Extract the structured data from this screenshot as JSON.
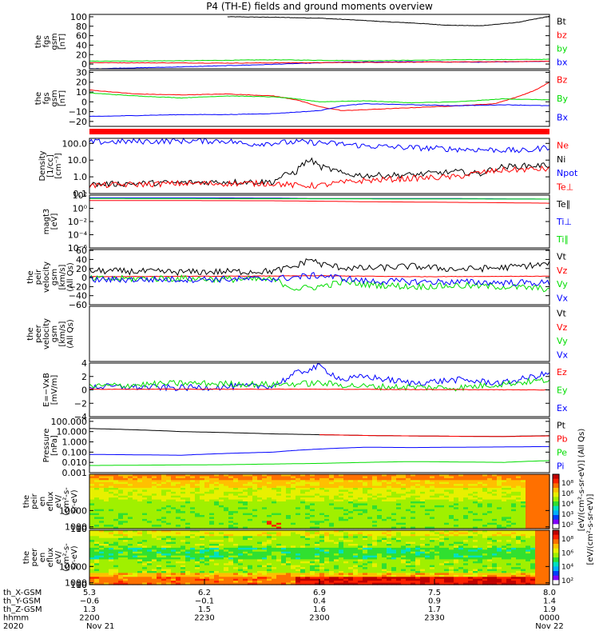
{
  "title": "P4 (TH-E) fields and ground moments overview",
  "colors": {
    "black": "#000000",
    "red": "#ff0000",
    "green": "#00dd00",
    "blue": "#0000ff"
  },
  "chart_data": [
    {
      "id": "fgs_gsm_mag",
      "type": "line",
      "ylabel": [
        "the",
        "fgs",
        "gsm",
        "[nT]"
      ],
      "ylim": [
        -10,
        105
      ],
      "yticks": [
        "100",
        "80",
        "60",
        "40",
        "20",
        "0"
      ],
      "ytick_values": [
        100,
        80,
        60,
        40,
        20,
        0
      ],
      "legend": [
        {
          "label": "Bt",
          "color": "black"
        },
        {
          "label": "bz",
          "color": "red"
        },
        {
          "label": "by",
          "color": "green"
        },
        {
          "label": "bx",
          "color": "blue"
        }
      ],
      "series": [
        {
          "name": "Bt",
          "color": "black",
          "x": [
            0.3,
            0.4,
            0.5,
            0.6,
            0.65,
            0.7,
            0.78,
            0.85,
            0.93,
            1.0
          ],
          "y": [
            100,
            99,
            97,
            92,
            89,
            87,
            82,
            81,
            88,
            101
          ]
        },
        {
          "name": "by",
          "color": "green",
          "x": [
            0.0,
            0.2,
            0.4,
            0.5,
            0.6,
            0.8,
            1.0
          ],
          "y": [
            6,
            7,
            9,
            8,
            7,
            9,
            10
          ]
        },
        {
          "name": "bx",
          "color": "blue",
          "x": [
            0.0,
            0.2,
            0.35,
            0.45,
            0.55,
            0.7,
            0.85,
            1.0
          ],
          "y": [
            -10,
            -6,
            -2,
            1,
            4,
            5,
            4,
            6
          ]
        },
        {
          "name": "bz",
          "color": "red",
          "x": [
            0.0,
            0.3,
            0.5,
            0.7,
            0.9,
            1.0
          ],
          "y": [
            3,
            2,
            3,
            4,
            5,
            6
          ]
        }
      ]
    },
    {
      "id": "fgs_gsm_comp",
      "type": "line",
      "ylabel": [
        "the",
        "fgs",
        "gsm",
        "[nT]"
      ],
      "ylim": [
        -25,
        32
      ],
      "yticks": [
        "30",
        "20",
        "10",
        "0",
        "−10",
        "−20"
      ],
      "ytick_values": [
        30,
        20,
        10,
        0,
        -10,
        -20
      ],
      "legend": [
        {
          "label": "Bz",
          "color": "red"
        },
        {
          "label": "By",
          "color": "green"
        },
        {
          "label": "Bx",
          "color": "blue"
        }
      ],
      "series": [
        {
          "name": "Bz",
          "color": "red",
          "x": [
            0.0,
            0.1,
            0.2,
            0.3,
            0.4,
            0.45,
            0.5,
            0.55,
            0.6,
            0.7,
            0.8,
            0.88,
            0.93,
            0.97,
            1.0
          ],
          "y": [
            12,
            8,
            7,
            8,
            6,
            2,
            -5,
            -9,
            -8,
            -6,
            -4,
            -2,
            5,
            12,
            20
          ]
        },
        {
          "name": "By",
          "color": "green",
          "x": [
            0.0,
            0.1,
            0.2,
            0.3,
            0.4,
            0.45,
            0.5,
            0.6,
            0.7,
            0.8,
            0.9,
            1.0
          ],
          "y": [
            9,
            6,
            4,
            6,
            5,
            3,
            0,
            1,
            -1,
            0,
            3,
            2
          ]
        },
        {
          "name": "Bx",
          "color": "blue",
          "x": [
            0.0,
            0.1,
            0.2,
            0.3,
            0.4,
            0.5,
            0.55,
            0.6,
            0.7,
            0.8,
            0.9,
            1.0
          ],
          "y": [
            -15,
            -14,
            -13,
            -13,
            -12,
            -9,
            -4,
            -2,
            -3,
            -4,
            -3,
            -4
          ]
        }
      ]
    },
    {
      "id": "density",
      "type": "line",
      "log": true,
      "ylabel": [
        "Density",
        "[1/cc]",
        "[cm⁻³]"
      ],
      "ylim": [
        0.1,
        200
      ],
      "yticks": [
        "100.0",
        "10.0",
        "1.0",
        "0.1"
      ],
      "ytick_values": [
        100,
        10,
        1,
        0.1
      ],
      "legend": [
        {
          "label": "Ne",
          "color": "red"
        },
        {
          "label": "Ni",
          "color": "black"
        },
        {
          "label": "Npot",
          "color": "blue"
        },
        {
          "label": "Te⊥",
          "color": "red"
        }
      ],
      "series": [
        {
          "name": "Npot",
          "color": "blue",
          "x": [
            0.0,
            0.1,
            0.2,
            0.3,
            0.34,
            0.45,
            0.5,
            0.6,
            0.7,
            0.8,
            0.9,
            0.95,
            1.0
          ],
          "y": [
            120,
            130,
            140,
            140,
            90,
            120,
            110,
            70,
            55,
            45,
            40,
            35,
            60
          ]
        },
        {
          "name": "Ni",
          "color": "black",
          "x": [
            0.0,
            0.1,
            0.2,
            0.3,
            0.4,
            0.45,
            0.48,
            0.5,
            0.55,
            0.6,
            0.7,
            0.8,
            0.85,
            0.9,
            1.0
          ],
          "y": [
            0.35,
            0.4,
            0.45,
            0.5,
            0.5,
            2,
            10,
            4,
            1.5,
            1.2,
            1.3,
            2,
            1.5,
            4,
            5
          ]
        },
        {
          "name": "Ne",
          "color": "red",
          "x": [
            0.0,
            0.1,
            0.2,
            0.3,
            0.4,
            0.45,
            0.5,
            0.6,
            0.7,
            0.8,
            0.9,
            1.0
          ],
          "y": [
            0.3,
            0.35,
            0.4,
            0.4,
            0.4,
            0.3,
            0.3,
            0.6,
            0.8,
            1.0,
            2.5,
            3.0
          ]
        }
      ]
    },
    {
      "id": "temperature",
      "type": "line",
      "log": true,
      "ylabel": [
        "magt3",
        "[eV]"
      ],
      "ylim": [
        1e-06,
        100
      ],
      "yticks": [
        "10²",
        "10⁰",
        "10⁻²",
        "10⁻⁴",
        "10⁻⁶"
      ],
      "ytick_values": [
        100,
        1,
        0.01,
        0.0001,
        1e-06
      ],
      "legend": [
        {
          "label": "Te∥",
          "color": "black"
        },
        {
          "label": "Ti⊥",
          "color": "blue"
        },
        {
          "label": "Ti∥",
          "color": "green"
        }
      ],
      "series": [
        {
          "name": "Ti",
          "color": "blue",
          "x": [
            0.0,
            0.2,
            0.4,
            0.5,
            0.6,
            0.8,
            1.0
          ],
          "y": [
            40,
            40,
            35,
            30,
            30,
            30,
            25
          ]
        },
        {
          "name": "Te",
          "color": "red",
          "x": [
            0.0,
            0.2,
            0.4,
            0.5,
            0.6,
            0.8,
            1.0
          ],
          "y": [
            15,
            15,
            14,
            12,
            10,
            8,
            6
          ]
        },
        {
          "name": "Tg",
          "color": "green",
          "x": [
            0.0,
            0.5,
            1.0
          ],
          "y": [
            30,
            28,
            25
          ]
        }
      ]
    },
    {
      "id": "peir_velocity",
      "type": "line",
      "ylabel": [
        "the",
        "peir",
        "velocity",
        "gsm",
        "[km/s]",
        "(All Qs)"
      ],
      "ylim": [
        -60,
        62
      ],
      "yticks": [
        "60",
        "40",
        "20",
        "0",
        "−20",
        "−40",
        "−60"
      ],
      "ytick_values": [
        60,
        40,
        20,
        0,
        -20,
        -40,
        -60
      ],
      "legend": [
        {
          "label": "Vt",
          "color": "black"
        },
        {
          "label": "Vz",
          "color": "red"
        },
        {
          "label": "Vy",
          "color": "green"
        },
        {
          "label": "Vx",
          "color": "blue"
        }
      ],
      "series": [
        {
          "name": "Vt",
          "color": "black",
          "x": [
            0.0,
            0.2,
            0.4,
            0.45,
            0.48,
            0.5,
            0.55,
            0.6,
            0.7,
            0.8,
            0.9,
            1.0
          ],
          "y": [
            15,
            12,
            14,
            25,
            42,
            30,
            22,
            20,
            25,
            18,
            22,
            30
          ]
        },
        {
          "name": "Vz",
          "color": "red",
          "x": [
            0.0,
            0.3,
            0.5,
            0.7,
            1.0
          ],
          "y": [
            2,
            3,
            4,
            2,
            3
          ]
        },
        {
          "name": "Vy",
          "color": "green",
          "x": [
            0.0,
            0.2,
            0.4,
            0.45,
            0.5,
            0.55,
            0.6,
            0.7,
            0.8,
            0.9,
            1.0
          ],
          "y": [
            -3,
            -2,
            -5,
            -25,
            -20,
            -10,
            -15,
            -20,
            -18,
            -20,
            -25
          ]
        },
        {
          "name": "Vx",
          "color": "blue",
          "x": [
            0.0,
            0.2,
            0.4,
            0.5,
            0.6,
            0.8,
            1.0
          ],
          "y": [
            -5,
            -4,
            -3,
            5,
            -8,
            -10,
            -12
          ]
        }
      ]
    },
    {
      "id": "peer_velocity",
      "type": "line",
      "ylabel": [
        "the",
        "peer",
        "velocity",
        "gsm",
        "[km/s]",
        "(All Qs)"
      ],
      "ylim": [
        -60,
        60
      ],
      "yticks": [],
      "ytick_values": [],
      "legend": [
        {
          "label": "Vt",
          "color": "black"
        },
        {
          "label": "Vz",
          "color": "red"
        },
        {
          "label": "Vy",
          "color": "green"
        },
        {
          "label": "Vx",
          "color": "blue"
        }
      ],
      "series": []
    },
    {
      "id": "efield",
      "type": "line",
      "ylabel": [
        "E=−VxB",
        "[mV/m]"
      ],
      "ylim": [
        -4,
        4
      ],
      "yticks": [
        "4",
        "2",
        "0",
        "−2",
        "−4"
      ],
      "ytick_values": [
        4,
        2,
        0,
        -2,
        -4
      ],
      "legend": [
        {
          "label": "Ez",
          "color": "red"
        },
        {
          "label": "Ey",
          "color": "green"
        },
        {
          "label": "Ex",
          "color": "blue"
        }
      ],
      "series": [
        {
          "name": "Ex",
          "color": "blue",
          "x": [
            0.0,
            0.2,
            0.4,
            0.45,
            0.5,
            0.55,
            0.6,
            0.7,
            0.8,
            0.9,
            1.0
          ],
          "y": [
            0.5,
            0.3,
            0.6,
            2.5,
            3.5,
            1.5,
            2.0,
            1.0,
            1.5,
            1.0,
            2.5
          ]
        },
        {
          "name": "Ey",
          "color": "green",
          "x": [
            0.0,
            0.2,
            0.4,
            0.5,
            0.6,
            0.8,
            1.0
          ],
          "y": [
            0.5,
            1.0,
            0.8,
            1.0,
            0.5,
            0.3,
            1.5
          ]
        },
        {
          "name": "Ez",
          "color": "red",
          "x": [
            0.0,
            0.5,
            1.0
          ],
          "y": [
            0.1,
            0.1,
            0.0
          ]
        }
      ]
    },
    {
      "id": "pressure",
      "type": "line",
      "log": true,
      "ylabel": [
        "Pressure",
        "[nPa]"
      ],
      "ylim": [
        0.001,
        200
      ],
      "yticks": [
        "100.000",
        "10.000",
        "1.000",
        "0.100",
        "0.010",
        "0.001"
      ],
      "ytick_values": [
        100,
        10,
        1,
        0.1,
        0.01,
        0.001
      ],
      "legend": [
        {
          "label": "Pt",
          "color": "black"
        },
        {
          "label": "Pb",
          "color": "red"
        },
        {
          "label": "Pe",
          "color": "green"
        },
        {
          "label": "Pi",
          "color": "blue"
        }
      ],
      "series": [
        {
          "name": "Pt",
          "color": "black",
          "x": [
            0.0,
            0.2,
            0.4,
            0.5,
            0.6,
            0.7,
            0.8,
            0.9,
            1.0
          ],
          "y": [
            20,
            10,
            6,
            5,
            4.2,
            3.8,
            3.5,
            3.4,
            4
          ]
        },
        {
          "name": "Pb",
          "color": "red",
          "x": [
            0.5,
            0.6,
            0.7,
            0.8,
            0.9,
            1.0
          ],
          "y": [
            5,
            4.2,
            3.8,
            3.5,
            3.3,
            3.8
          ]
        },
        {
          "name": "Pi",
          "color": "blue",
          "x": [
            0.0,
            0.2,
            0.4,
            0.5,
            0.6,
            0.7,
            0.8,
            0.9,
            1.0
          ],
          "y": [
            0.06,
            0.05,
            0.1,
            0.2,
            0.3,
            0.28,
            0.3,
            0.32,
            0.35
          ]
        },
        {
          "name": "Pe",
          "color": "green",
          "x": [
            0.0,
            0.3,
            0.5,
            0.7,
            0.9,
            1.0
          ],
          "y": [
            0.005,
            0.006,
            0.008,
            0.012,
            0.01,
            0.015
          ]
        }
      ]
    },
    {
      "id": "peir_spec",
      "type": "heatmap",
      "ylabel": [
        "the",
        "peir",
        "en",
        "eflux",
        "eV/",
        "(cm²-s-",
        "sr-eV)"
      ],
      "ylim": [
        5,
        30000
      ],
      "yticks": [
        "10000",
        "1000",
        "100",
        "10"
      ],
      "ytick_values": [
        10000,
        1000,
        100,
        10
      ]
    },
    {
      "id": "peer_spec",
      "type": "heatmap",
      "ylabel": [
        "the",
        "peer",
        "en",
        "eflux",
        "eV/",
        "(cm²-s-",
        "sr-eV)"
      ],
      "ylim": [
        5,
        30000
      ],
      "yticks": [
        "10000",
        "1000",
        "100",
        "10"
      ],
      "ytick_values": [
        10000,
        1000,
        100,
        10
      ]
    }
  ],
  "colorbar": {
    "label": "[eV/(cm²-s-sr-eV)]",
    "label2": "[eV/(cm²-s-sr-eV)] (All Qs)",
    "ticks_top": [
      "10⁸",
      "10⁶",
      "10⁴",
      "10³",
      "10²"
    ],
    "ticks_bottom": [
      "10⁸",
      "10⁶",
      "10⁴",
      "10²"
    ]
  },
  "x_axis": {
    "rows": [
      {
        "label": "th_X-GSM",
        "values": [
          "5.3",
          "6.2",
          "6.9",
          "7.5",
          "8.0"
        ]
      },
      {
        "label": "th_Y-GSM",
        "values": [
          "−0.6",
          "−0.1",
          "0.4",
          "0.9",
          "1.4"
        ]
      },
      {
        "label": "th_Z-GSM",
        "values": [
          "1.3",
          "1.5",
          "1.6",
          "1.7",
          "1.9"
        ]
      },
      {
        "label": "hhmm",
        "values": [
          "2200",
          "2230",
          "2300",
          "2330",
          "0000"
        ]
      },
      {
        "label": "2020",
        "values": [
          "Nov 21",
          "",
          "",
          "",
          "Nov 22"
        ]
      }
    ],
    "tick_fractions": [
      0,
      0.25,
      0.5,
      0.75,
      1.0
    ]
  }
}
